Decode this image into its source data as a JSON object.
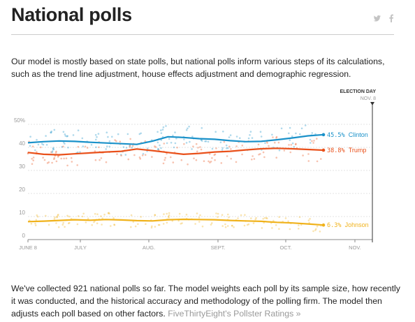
{
  "header": {
    "title": "National polls",
    "share_icons": [
      "twitter-icon",
      "facebook-icon"
    ]
  },
  "intro": "Our model is mostly based on state polls, but national polls inform various steps of its calculations, such as the trend line adjustment, house effects adjustment and demographic regression.",
  "chart_data": {
    "type": "line",
    "election_day_label": "ELECTION DAY",
    "election_day_date": "NOV. 8",
    "x_ticks": [
      "JUNE 8",
      "JULY",
      "AUG.",
      "SEPT.",
      "OCT.",
      "NOV."
    ],
    "y_ticks": [
      0,
      10,
      20,
      30,
      40,
      "50%"
    ],
    "ylim": [
      0,
      50
    ],
    "grid": true,
    "series": [
      {
        "name": "Clinton",
        "final_label": "45.5%",
        "color": "#1a91c9",
        "values": [
          42.0,
          42.5,
          42.8,
          42.6,
          42.2,
          41.9,
          41.6,
          41.3,
          42.7,
          44.6,
          44.3,
          43.8,
          43.5,
          42.9,
          42.5,
          42.6,
          43.3,
          44.1,
          45.0,
          45.5
        ]
      },
      {
        "name": "Trump",
        "final_label": "38.8%",
        "color": "#e9501a",
        "values": [
          37.8,
          37.0,
          36.8,
          37.2,
          37.6,
          38.0,
          38.3,
          39.3,
          38.6,
          37.8,
          37.0,
          37.4,
          38.0,
          38.3,
          38.9,
          39.4,
          39.6,
          39.4,
          39.1,
          38.8
        ]
      },
      {
        "name": "Johnson",
        "final_label": "6.3%",
        "color": "#f0b21b",
        "values": [
          7.8,
          8.0,
          8.3,
          8.6,
          8.4,
          8.7,
          8.5,
          8.2,
          8.1,
          8.6,
          8.8,
          8.7,
          8.6,
          8.3,
          8.1,
          7.9,
          7.5,
          7.2,
          6.8,
          6.3
        ]
      }
    ]
  },
  "footer": {
    "text": "We've collected 921 national polls so far. The model weights each poll by its sample size, how recently it was conducted, and the historical accuracy and methodology of the polling firm. The model then adjusts each poll based on other factors. ",
    "link": "FiveThirtyEight's Pollster Ratings »"
  }
}
